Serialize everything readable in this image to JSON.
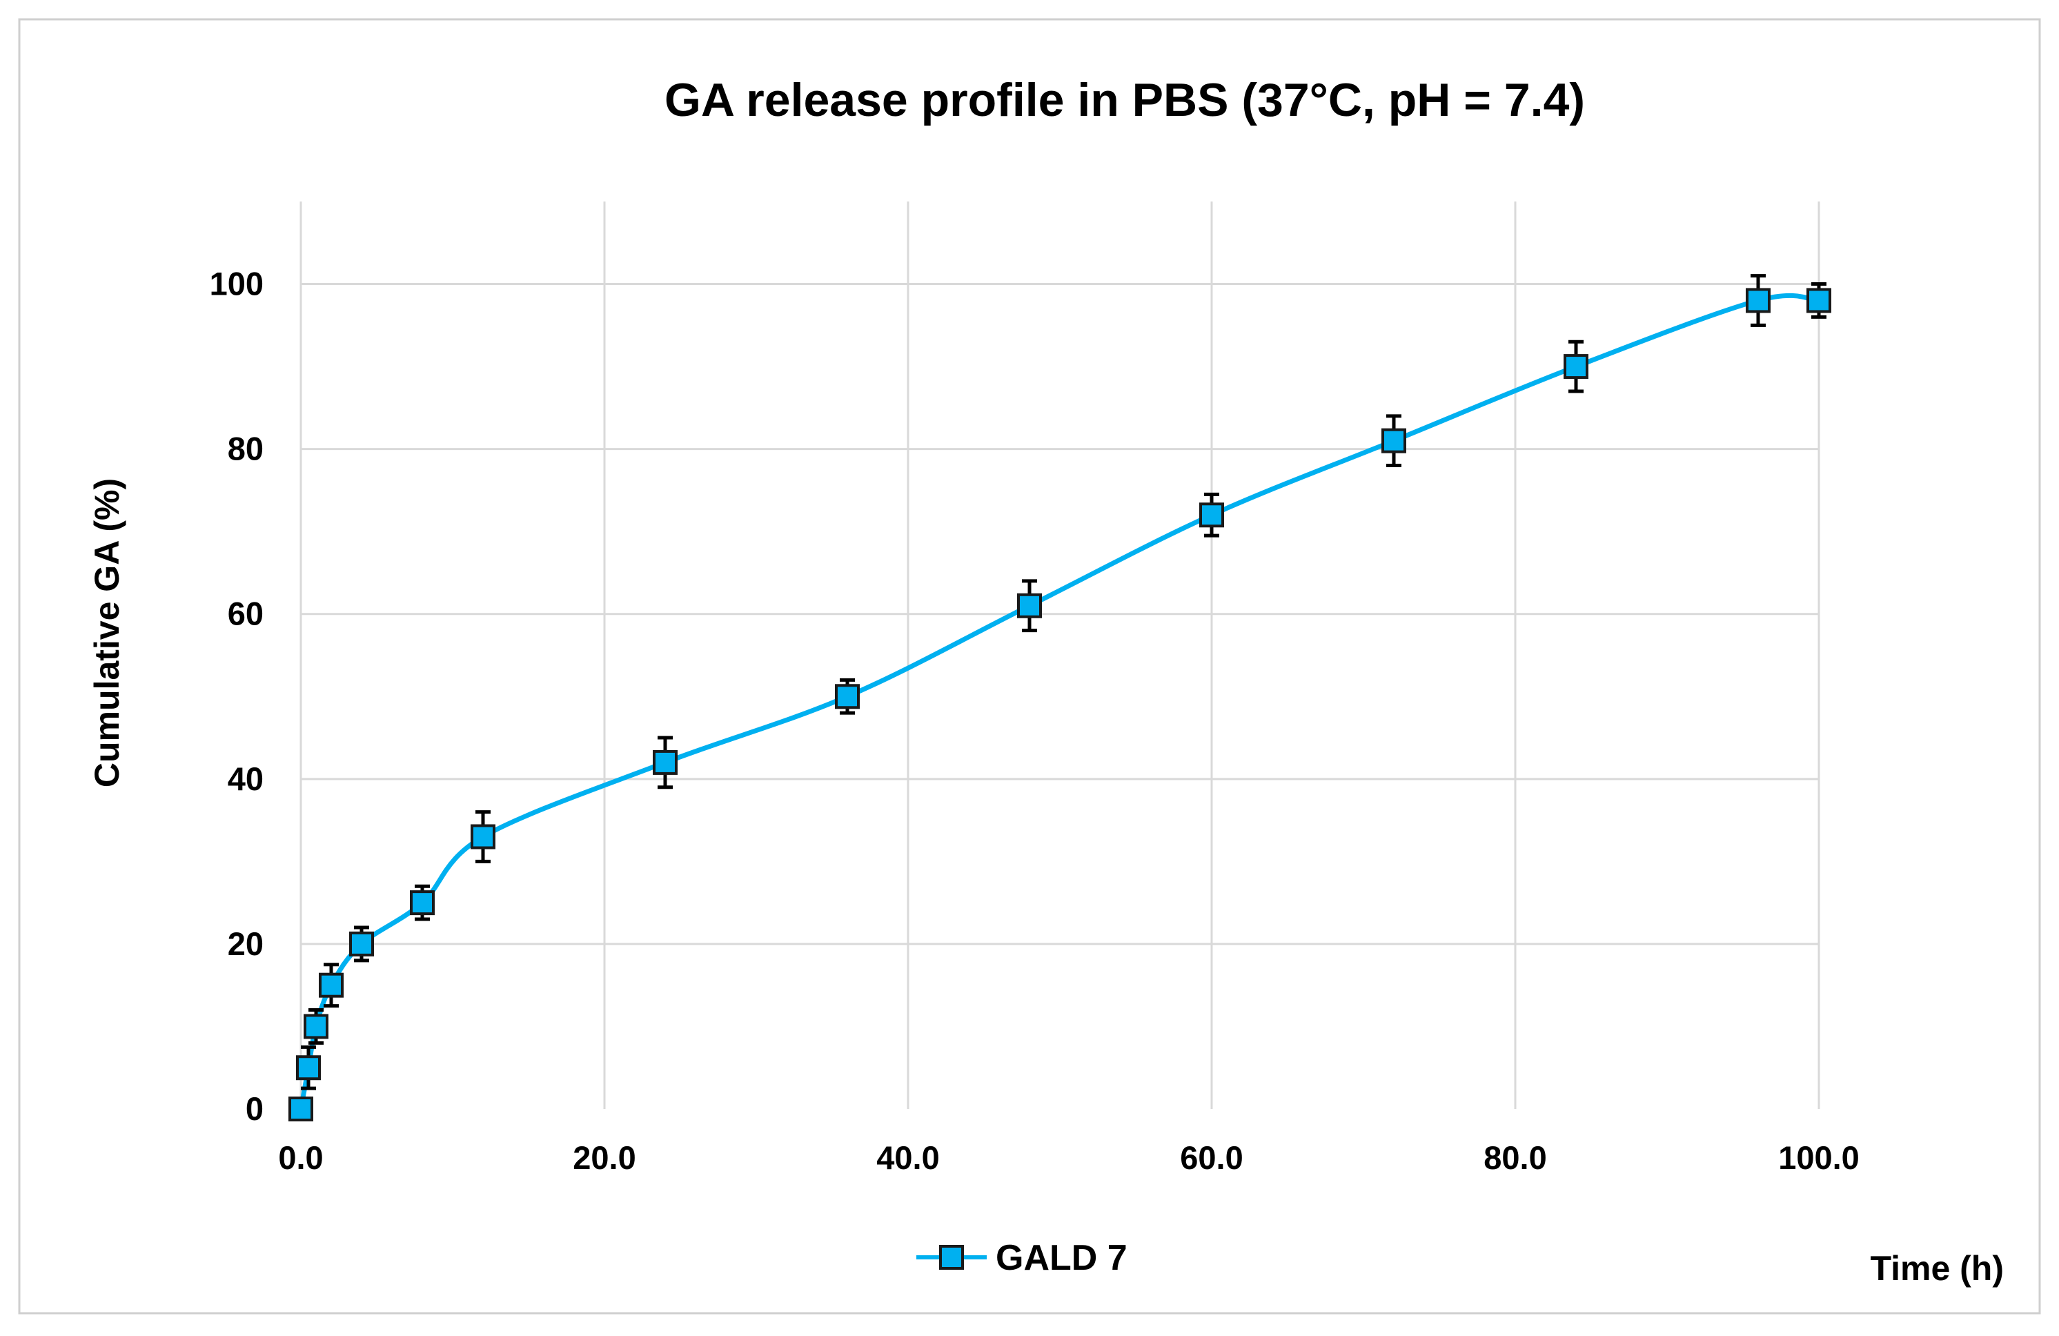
{
  "chart_data": {
    "type": "line",
    "title": "GA release profile in PBS (37°C, pH = 7.4)",
    "xlabel": "Time (h)",
    "ylabel": "Cumulative GA (%)",
    "xlim": [
      0,
      100
    ],
    "ylim": [
      0,
      110
    ],
    "x_ticks": [
      "0.0",
      "20.0",
      "40.0",
      "60.0",
      "80.0",
      "100.0"
    ],
    "y_ticks": [
      "0",
      "20",
      "40",
      "60",
      "80",
      "100"
    ],
    "grid": true,
    "legend_position": "bottom",
    "smooth": true,
    "series": [
      {
        "name": "GALD 7",
        "color": "#00b0f0",
        "marker": "square",
        "x": [
          0,
          0.5,
          1,
          2,
          4,
          8,
          12,
          24,
          36,
          48,
          60,
          72,
          84,
          96,
          100
        ],
        "y": [
          0,
          5,
          10,
          15,
          20,
          25,
          33,
          42,
          50,
          61,
          72,
          81,
          90,
          98,
          98
        ],
        "error": [
          0,
          2.5,
          2,
          2.5,
          2,
          2,
          3,
          3,
          2,
          3,
          2.5,
          3,
          3,
          3,
          2
        ]
      }
    ]
  }
}
